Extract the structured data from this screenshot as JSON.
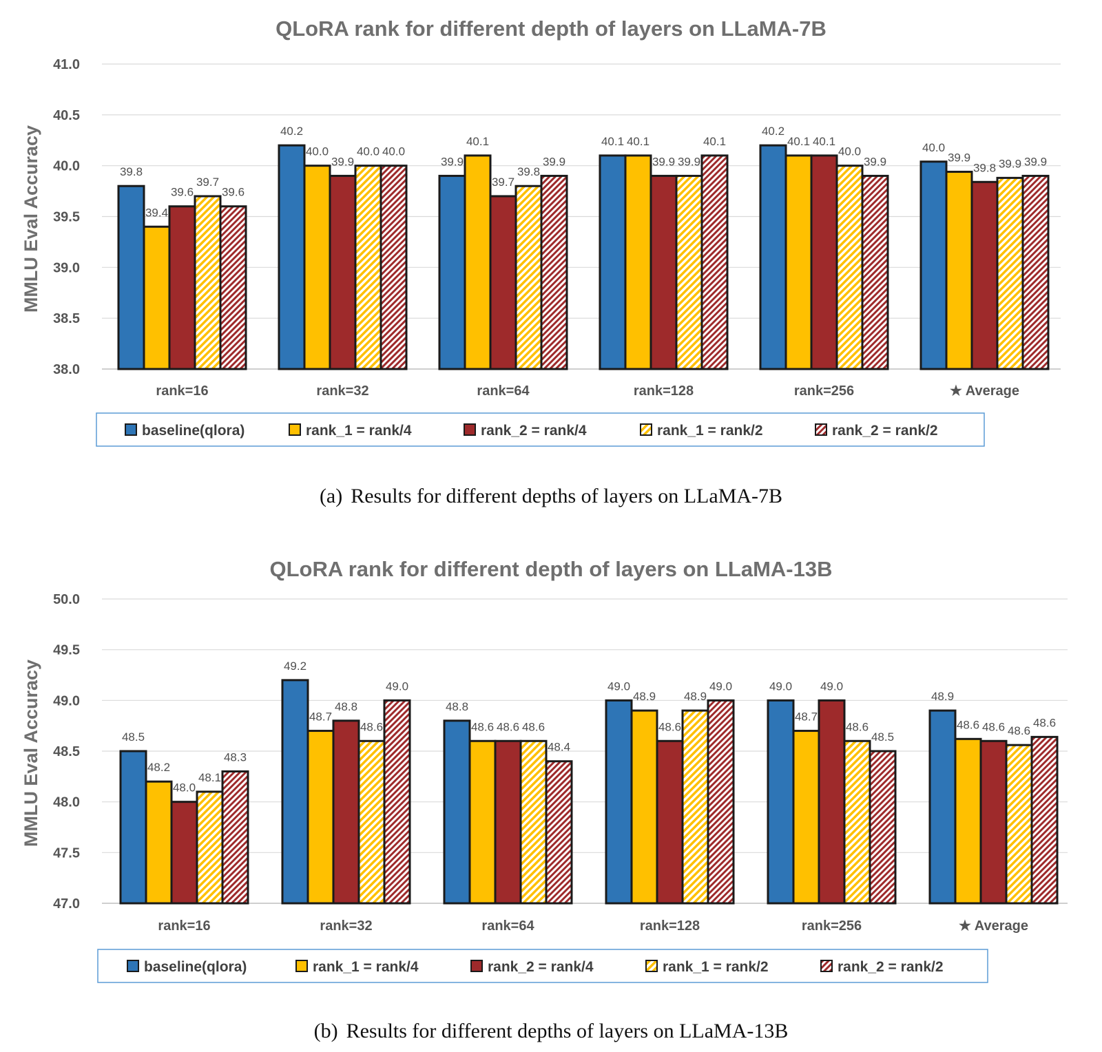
{
  "colors": {
    "baseline": "#2e75b6",
    "yellow": "#ffc000",
    "red": "#9e2a2b",
    "hatch_yellow": "#ffc000",
    "hatch_red": "#9e2a2b",
    "title_gray": "#6f6f6f"
  },
  "chart_data": [
    {
      "type": "bar",
      "title": "QLoRA rank for different depth of layers on LLaMA-7B",
      "ylabel": "MMLU Eval Accuracy",
      "ylim": [
        38.0,
        41.0
      ],
      "yticks": [
        "38.0",
        "38.5",
        "39.0",
        "39.5",
        "40.0",
        "40.5",
        "41.0"
      ],
      "grid": true,
      "legend_position": "bottom",
      "categories": [
        "rank=16",
        "rank=32",
        "rank=64",
        "rank=128",
        "rank=256",
        "★ Average"
      ],
      "series": [
        {
          "name": "baseline(qlora)",
          "style": "solid-blue",
          "values": [
            39.8,
            40.2,
            39.9,
            40.1,
            40.2,
            40.04
          ],
          "labels": [
            "39.8",
            "40.2",
            "39.9",
            "40.1",
            "40.2",
            "40.0"
          ]
        },
        {
          "name": "rank_1 = rank/4",
          "style": "solid-yellow",
          "values": [
            39.4,
            40.0,
            40.1,
            40.1,
            40.1,
            39.94
          ],
          "labels": [
            "39.4",
            "40.0",
            "40.1",
            "40.1",
            "40.1",
            "39.9"
          ]
        },
        {
          "name": "rank_2 = rank/4",
          "style": "solid-red",
          "values": [
            39.6,
            39.9,
            39.7,
            39.9,
            40.1,
            39.84
          ],
          "labels": [
            "39.6",
            "39.9",
            "39.7",
            "39.9",
            "40.1",
            "39.8"
          ]
        },
        {
          "name": "rank_1 = rank/2",
          "style": "hatch-yellow",
          "values": [
            39.7,
            40.0,
            39.8,
            39.9,
            40.0,
            39.88
          ],
          "labels": [
            "39.7",
            "40.0",
            "39.8",
            "39.9",
            "40.0",
            "39.9"
          ]
        },
        {
          "name": "rank_2 = rank/2",
          "style": "hatch-red",
          "values": [
            39.6,
            40.0,
            39.9,
            40.1,
            39.9,
            39.9
          ],
          "labels": [
            "39.6",
            "40.0",
            "39.9",
            "40.1",
            "39.9",
            "39.9"
          ]
        }
      ]
    },
    {
      "type": "bar",
      "title": "QLoRA rank for different depth of layers on LLaMA-13B",
      "ylabel": "MMLU Eval Accuracy",
      "ylim": [
        47.0,
        50.0
      ],
      "yticks": [
        "47.0",
        "47.5",
        "48.0",
        "48.5",
        "49.0",
        "49.5",
        "50.0"
      ],
      "grid": true,
      "legend_position": "bottom",
      "categories": [
        "rank=16",
        "rank=32",
        "rank=64",
        "rank=128",
        "rank=256",
        "★ Average"
      ],
      "series": [
        {
          "name": "baseline(qlora)",
          "style": "solid-blue",
          "values": [
            48.5,
            49.2,
            48.8,
            49.0,
            49.0,
            48.9
          ],
          "labels": [
            "48.5",
            "49.2",
            "48.8",
            "49.0",
            "49.0",
            "48.9"
          ]
        },
        {
          "name": "rank_1 = rank/4",
          "style": "solid-yellow",
          "values": [
            48.2,
            48.7,
            48.6,
            48.9,
            48.7,
            48.62
          ],
          "labels": [
            "48.2",
            "48.7",
            "48.6",
            "48.9",
            "48.7",
            "48.6"
          ]
        },
        {
          "name": "rank_2 = rank/4",
          "style": "solid-red",
          "values": [
            48.0,
            48.8,
            48.6,
            48.6,
            49.0,
            48.6
          ],
          "labels": [
            "48.0",
            "48.8",
            "48.6",
            "48.6",
            "49.0",
            "48.6"
          ]
        },
        {
          "name": "rank_1 = rank/2",
          "style": "hatch-yellow",
          "values": [
            48.1,
            48.6,
            48.6,
            48.9,
            48.6,
            48.56
          ],
          "labels": [
            "48.1",
            "48.6",
            "48.6",
            "48.9",
            "48.6",
            "48.6"
          ]
        },
        {
          "name": "rank_2 = rank/2",
          "style": "hatch-red",
          "values": [
            48.3,
            49.0,
            48.4,
            49.0,
            48.5,
            48.64
          ],
          "labels": [
            "48.3",
            "49.0",
            "48.4",
            "49.0",
            "48.5",
            "48.6"
          ]
        }
      ]
    }
  ],
  "captions": [
    {
      "label": "(a)",
      "text": "Results for different depths of layers on LLaMA-7B"
    },
    {
      "label": "(b)",
      "text": "Results for different depths of layers on LLaMA-13B"
    }
  ]
}
